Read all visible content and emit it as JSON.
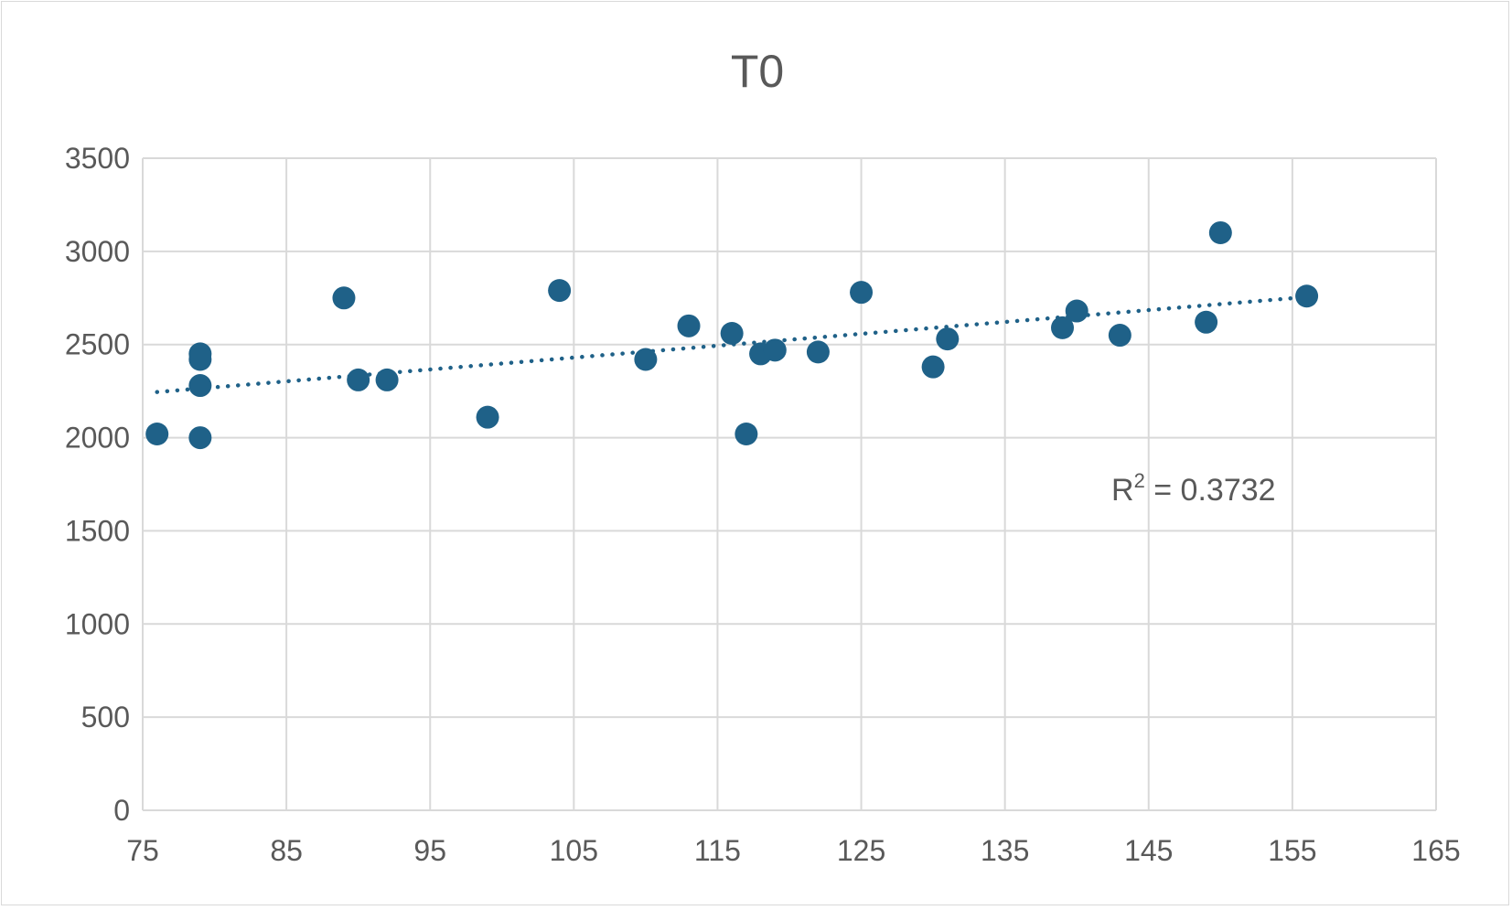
{
  "chart_data": {
    "type": "scatter",
    "title": "T0",
    "xlabel": "",
    "ylabel": "",
    "xlim": [
      75,
      165
    ],
    "ylim": [
      0,
      3500
    ],
    "x_ticks": [
      "75",
      "85",
      "95",
      "105",
      "115",
      "125",
      "135",
      "145",
      "155",
      "165"
    ],
    "y_ticks": [
      "0",
      "500",
      "1000",
      "1500",
      "2000",
      "2500",
      "3000",
      "3500"
    ],
    "grid": true,
    "legend": "none",
    "series": [
      {
        "color": "#1f6188",
        "points": [
          {
            "x": 76,
            "y": 2020
          },
          {
            "x": 79,
            "y": 2450
          },
          {
            "x": 79,
            "y": 2420
          },
          {
            "x": 79,
            "y": 2280
          },
          {
            "x": 79,
            "y": 2000
          },
          {
            "x": 89,
            "y": 2750
          },
          {
            "x": 90,
            "y": 2310
          },
          {
            "x": 92,
            "y": 2310
          },
          {
            "x": 99,
            "y": 2110
          },
          {
            "x": 104,
            "y": 2790
          },
          {
            "x": 110,
            "y": 2420
          },
          {
            "x": 113,
            "y": 2600
          },
          {
            "x": 116,
            "y": 2560
          },
          {
            "x": 117,
            "y": 2020
          },
          {
            "x": 118,
            "y": 2450
          },
          {
            "x": 119,
            "y": 2470
          },
          {
            "x": 122,
            "y": 2460
          },
          {
            "x": 125,
            "y": 2780
          },
          {
            "x": 130,
            "y": 2380
          },
          {
            "x": 131,
            "y": 2530
          },
          {
            "x": 139,
            "y": 2590
          },
          {
            "x": 140,
            "y": 2680
          },
          {
            "x": 143,
            "y": 2550
          },
          {
            "x": 149,
            "y": 2620
          },
          {
            "x": 150,
            "y": 3100
          },
          {
            "x": 156,
            "y": 2760
          }
        ]
      }
    ],
    "trendline": {
      "type": "linear",
      "style": "dotted",
      "color": "#1f6188",
      "x": [
        76,
        156
      ],
      "y": [
        2245,
        2755
      ],
      "r2_label": "R² = 0.3732"
    },
    "colors": {
      "marker": "#1f6188",
      "grid": "#d9d9d9",
      "text": "#595959"
    }
  }
}
